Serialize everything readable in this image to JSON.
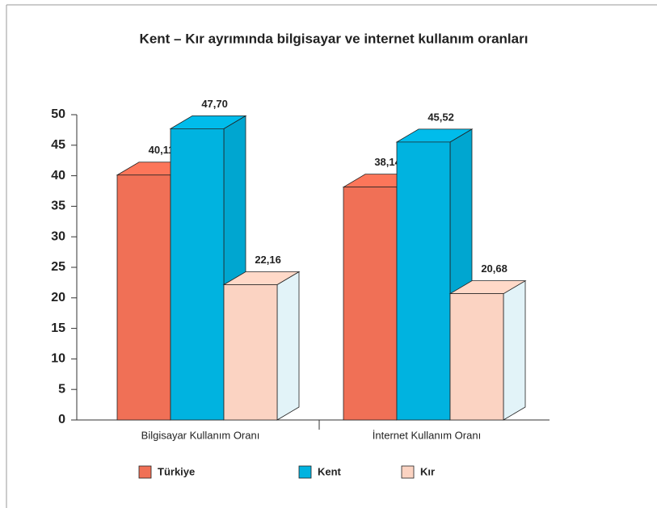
{
  "chart_data": {
    "type": "bar3d",
    "title": "Kent – Kır ayrımında bilgisayar ve internet kullanım oranları",
    "categories": [
      "Bilgisayar Kullanım Oranı",
      "İnternet Kullanım Oranı"
    ],
    "series": [
      {
        "name": "Türkiye",
        "color": "#f07056",
        "values": [
          40.11,
          38.14
        ],
        "value_labels": [
          "40,11",
          "38,14"
        ]
      },
      {
        "name": "Kent",
        "color": "#00b3e0",
        "values": [
          47.7,
          45.52
        ],
        "value_labels": [
          "47,70",
          "45,52"
        ]
      },
      {
        "name": "Kır",
        "color": "#fbd3c2",
        "values": [
          22.16,
          20.68
        ],
        "value_labels": [
          "22,16",
          "20,68"
        ]
      }
    ],
    "ylim": [
      0,
      50
    ],
    "yticks": [
      0,
      5,
      10,
      15,
      20,
      25,
      30,
      35,
      40,
      45,
      50
    ],
    "legend": "bottom"
  }
}
